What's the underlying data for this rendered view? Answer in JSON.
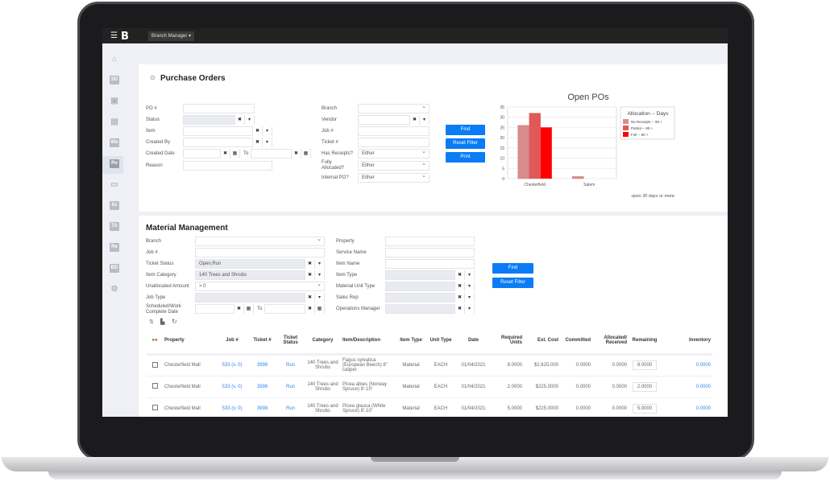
{
  "topbar": {
    "role": "Branch Manager ▾"
  },
  "sidebar": {
    "items": [
      {
        "icon": "home-icon",
        "label": "⌂"
      },
      {
        "label": "SD"
      },
      {
        "icon": "contact-card-icon",
        "label": "▣"
      },
      {
        "icon": "building-icon",
        "label": "▤"
      },
      {
        "label": "Wo"
      },
      {
        "label": "Po",
        "active": true
      },
      {
        "icon": "ticket-icon",
        "label": "▭"
      },
      {
        "label": "Sc"
      },
      {
        "label": "TA"
      },
      {
        "label": "Re"
      },
      {
        "label": "BD"
      },
      {
        "icon": "gear-icon",
        "label": "⚙"
      }
    ]
  },
  "po": {
    "title": "Purchase Orders",
    "fields": {
      "po": "PO #",
      "status": "Status",
      "item": "Item",
      "created_by": "Created By",
      "created_date": "Created Date",
      "to": "To",
      "reason": "Reason",
      "branch": "Branch",
      "vendor": "Vendor",
      "job": "Job #",
      "ticket": "Ticket #",
      "has_receipts": "Has Receipts?",
      "fully_allocated": "Fully Allocated?",
      "internal_po": "Internal PO?"
    },
    "values": {
      "has_receipts": "Either",
      "fully_allocated": "Either",
      "internal_po": "Either"
    },
    "buttons": {
      "find": "Find",
      "reset": "Reset Filter",
      "print": "Print"
    }
  },
  "chart_data": {
    "type": "bar",
    "title": "Open POs",
    "categories": [
      "Chesterfield",
      "Salem"
    ],
    "series": [
      {
        "name": "No Receipts -- 90 +",
        "values": [
          26,
          1
        ],
        "color": "#d98c8c"
      },
      {
        "name": "Partial -- 90 +",
        "values": [
          32,
          0
        ],
        "color": "#e05858"
      },
      {
        "name": "Full -- 90 +",
        "values": [
          25,
          0
        ],
        "color": "#ff0000"
      }
    ],
    "ylim": [
      0,
      35
    ],
    "yticks": [
      0,
      5,
      10,
      15,
      20,
      25,
      30,
      35
    ],
    "legend_title": "Allocation -- Days",
    "legend": "right",
    "grid": true,
    "annotation": "open 30 days or more"
  },
  "mm": {
    "title": "Material Management",
    "fields": {
      "branch": "Branch",
      "job": "Job #",
      "ticket_status": "Ticket Status",
      "item_category": "Item Category",
      "unallocated": "Unallocated Amount",
      "job_type": "Job Type",
      "sched": "Scheduled/Work Complete Date",
      "to": "To",
      "property": "Property",
      "service": "Service Name",
      "item_name": "Item Name",
      "item_type": "Item Type",
      "unit_type": "Material Unit Type",
      "sales_rep": "Sales Rep",
      "ops_mgr": "Operations Manager"
    },
    "values": {
      "ticket_status": "Open,Run",
      "item_category": "140 Trees and Shrubs",
      "unallocated": "> 0"
    },
    "buttons": {
      "find": "Find",
      "reset": "Reset Filter"
    }
  },
  "table": {
    "headers": [
      "",
      "Property",
      "Job #",
      "Ticket #",
      "Ticket Status",
      "Category",
      "Item/Description",
      "Item Type",
      "Unit Type",
      "Date",
      "Required Units",
      "Est. Cost",
      "Committed",
      "Allocated/ Received",
      "Remaining",
      "Inventory"
    ],
    "rows": [
      [
        "",
        "Chesterfield Mall",
        "533 (v. 0)",
        "3998",
        "Run",
        "140 Trees and Shrubs",
        "Fagus sylvatica (European Beech) 8\" caliper",
        "Material",
        "EACH",
        "01/04/2021",
        "8.0000",
        "$2,625.000",
        "0.0000",
        "0.0000",
        "8.0000",
        "0.0000"
      ],
      [
        "",
        "Chesterfield Mall",
        "533 (v. 0)",
        "3998",
        "Run",
        "140 Trees and Shrubs",
        "Picea abies (Norway Spruce) 8'-10'",
        "Material",
        "EACH",
        "01/04/2021",
        "2.0000",
        "$225.0000",
        "0.0000",
        "0.0000",
        "2.0000",
        "0.0000"
      ],
      [
        "",
        "Chesterfield Mall",
        "533 (v. 0)",
        "3998",
        "Run",
        "140 Trees and Shrubs",
        "Picea glauca (White Spruce) 8'-10'",
        "Material",
        "EACH",
        "01/04/2021",
        "5.0000",
        "$225.0000",
        "0.0000",
        "0.0000",
        "5.0000",
        "0.0000"
      ]
    ]
  }
}
